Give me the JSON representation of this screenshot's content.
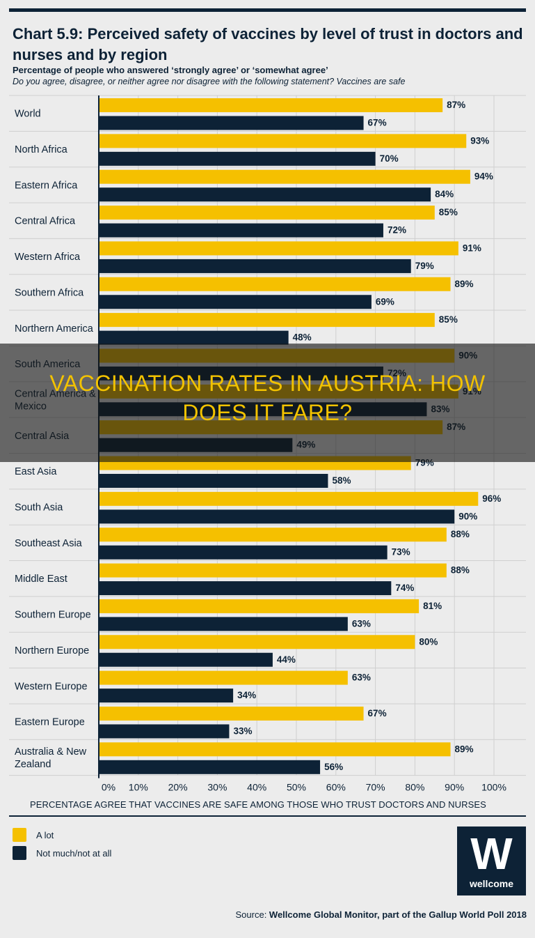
{
  "title": "Chart 5.9: Perceived safety of vaccines by level of trust in doctors and nurses and by region",
  "subtitle": "Percentage of people who answered ‘strongly agree’ or ‘somewhat agree’",
  "question": "Do you agree, disagree, or neither agree nor disagree with the following statement? Vaccines are safe",
  "xaxis_title": "PERCENTAGE AGREE THAT VACCINES ARE SAFE AMONG THOSE WHO TRUST DOCTORS AND NURSES",
  "legend": [
    {
      "label": "A lot",
      "color": "#f5c000"
    },
    {
      "label": "Not much/not at all",
      "color": "#0d2236"
    }
  ],
  "logo": {
    "mark": "W",
    "text": "wellcome"
  },
  "source": {
    "prefix": "Source: ",
    "text": "Wellcome Global Monitor, part of the Gallup World Poll 2018"
  },
  "banner": {
    "line1": "Vaccination Rates in Austria: How",
    "line2": "Does It Fare?"
  },
  "colors": {
    "a_lot": "#f5c000",
    "not_much": "#0d2236",
    "grid": "#cfcfcf",
    "axis": "#0d2236"
  },
  "chart_data": {
    "type": "bar",
    "orientation": "horizontal",
    "categories": [
      "World",
      "North Africa",
      "Eastern Africa",
      "Central Africa",
      "Western Africa",
      "Southern Africa",
      "Northern America",
      "South America",
      "Central America & Mexico",
      "Central Asia",
      "East Asia",
      "South Asia",
      "Southeast Asia",
      "Middle East",
      "Southern Europe",
      "Northern Europe",
      "Western Europe",
      "Eastern Europe",
      "Australia & New Zealand"
    ],
    "series": [
      {
        "name": "A lot",
        "values": [
          87,
          93,
          94,
          85,
          91,
          89,
          85,
          90,
          91,
          87,
          79,
          96,
          88,
          88,
          81,
          80,
          63,
          67,
          89
        ]
      },
      {
        "name": "Not much/not at all",
        "values": [
          67,
          70,
          84,
          72,
          79,
          69,
          48,
          72,
          83,
          49,
          58,
          90,
          73,
          74,
          63,
          44,
          34,
          33,
          56
        ]
      }
    ],
    "xticks": [
      "0%",
      "10%",
      "20%",
      "30%",
      "40%",
      "50%",
      "60%",
      "70%",
      "80%",
      "90%",
      "100%"
    ],
    "xlim": [
      0,
      100
    ],
    "xlabel": "PERCENTAGE AGREE THAT VACCINES ARE SAFE AMONG THOSE WHO TRUST DOCTORS AND NURSES",
    "value_suffix": "%",
    "grid": true,
    "legend_position": "bottom-left"
  }
}
